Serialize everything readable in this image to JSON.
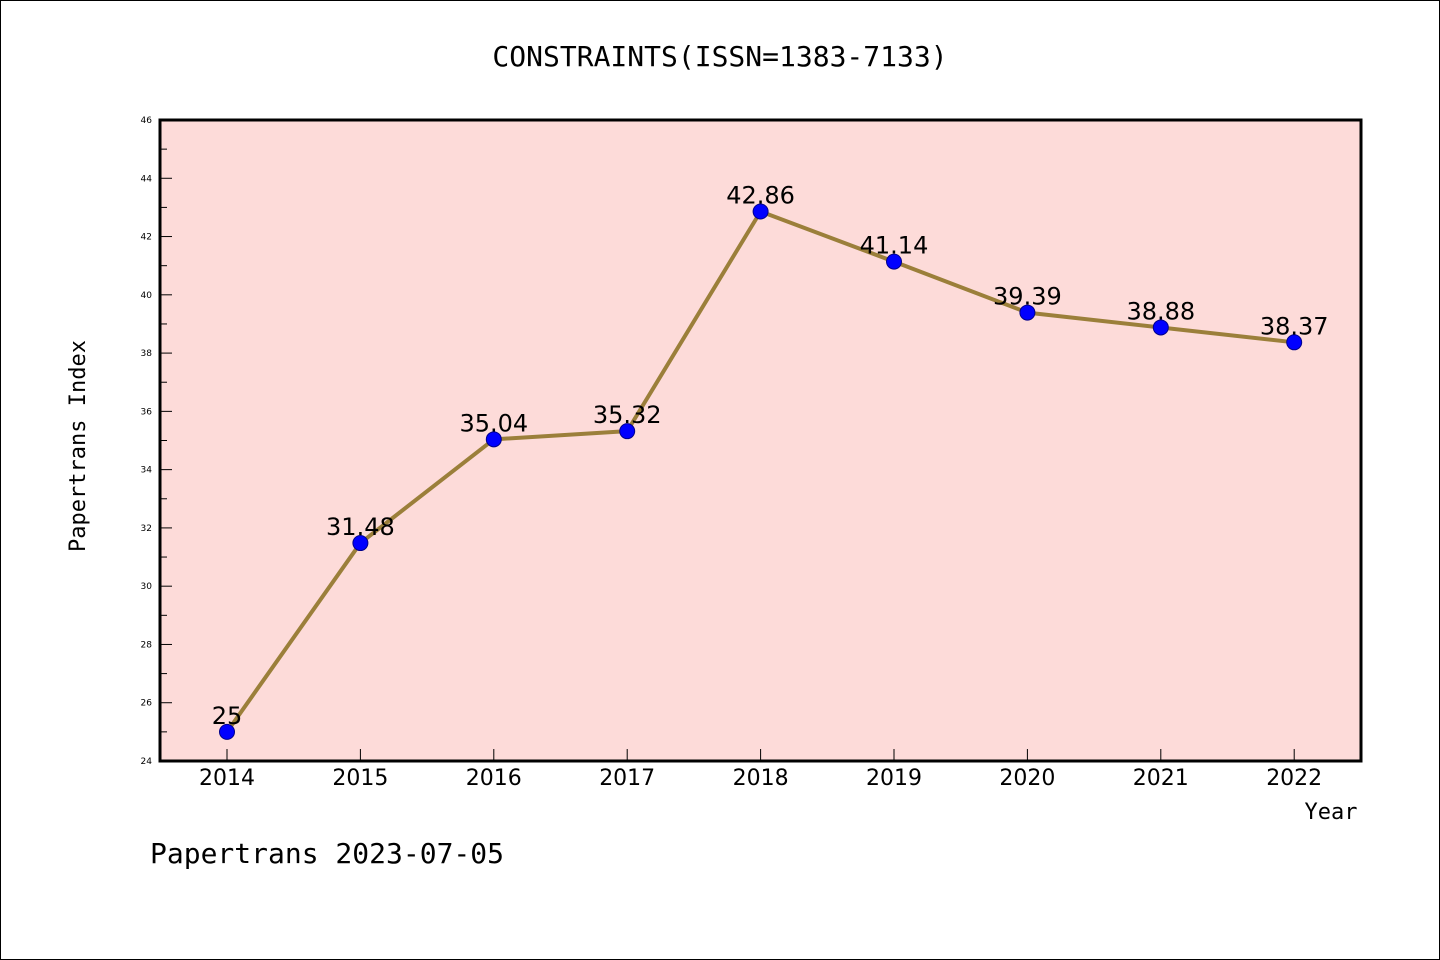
{
  "colors": {
    "plot_background": "#fddbd9",
    "line": "#9b7f3a",
    "marker": "#0000ff",
    "axis": "#000000"
  },
  "chart_data": {
    "type": "line",
    "title": "CONSTRAINTS(ISSN=1383-7133)",
    "xlabel": "Year",
    "ylabel": "Papertrans Index",
    "x": [
      "2014",
      "2015",
      "2016",
      "2017",
      "2018",
      "2019",
      "2020",
      "2021",
      "2022"
    ],
    "series": [
      {
        "values": [
          25,
          31.48,
          35.04,
          35.32,
          42.86,
          41.14,
          39.39,
          38.88,
          38.37
        ],
        "labels": [
          "25",
          "31.48",
          "35.04",
          "35.32",
          "42.86",
          "41.14",
          "39.39",
          "38.88",
          "38.37"
        ]
      }
    ],
    "ylim": [
      24,
      46
    ],
    "yticks": [
      24,
      26,
      28,
      30,
      32,
      34,
      36,
      38,
      40,
      42,
      44,
      46
    ],
    "grid": false,
    "legend": "none",
    "footer": "Papertrans 2023-07-05"
  }
}
